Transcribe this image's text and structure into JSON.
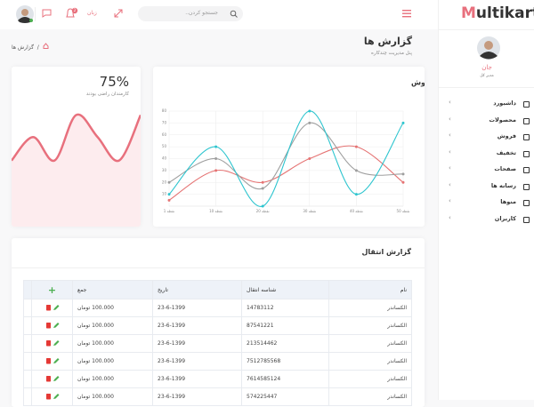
{
  "sidebar": {
    "logo_m": "M",
    "logo_rest": "ultikart",
    "user": {
      "name": "جان",
      "role": "مدیر کل"
    },
    "menu": [
      "داشبورد",
      "محصولات",
      "فروش",
      "تخفیف",
      "صفحات",
      "رسانه ها",
      "منوها",
      "کاربران"
    ]
  },
  "header": {
    "search_placeholder": "جستجو کردن..",
    "language": "زبان",
    "notification_count": "2"
  },
  "page": {
    "title": "گزارش ها",
    "subtitle": "پنل مدیریت چندکاره",
    "breadcrumb": "گزارش ها"
  },
  "stat": {
    "value": "75%",
    "caption": "کارمندان راضی بودند"
  },
  "chart_data": [
    {
      "type": "area",
      "values": [
        48,
        65,
        48,
        81,
        65,
        48,
        81
      ],
      "ylim": [
        0,
        100
      ],
      "color": "#e8707d",
      "fill_color": "#fdecee"
    },
    {
      "type": "line",
      "title": "خلاصه فروش",
      "categories": [
        "نقطه 1",
        "نقطه 10",
        "نقطه 20",
        "نقطه 30",
        "نقطه 40",
        "نقطه 50"
      ],
      "ylim": [
        0,
        80
      ],
      "yticks": [
        10,
        20,
        30,
        40,
        50,
        60,
        70,
        80
      ],
      "grid": true,
      "series": [
        {
          "color": "#e57373",
          "values": [
            5,
            30,
            20,
            40,
            50,
            20
          ]
        },
        {
          "color": "#9e9e9e",
          "values": [
            20,
            40,
            15,
            70,
            30,
            27
          ]
        },
        {
          "color": "#2ec5cf",
          "values": [
            10,
            50,
            0,
            80,
            10,
            70
          ]
        }
      ]
    }
  ],
  "table": {
    "title": "گزارش انتقال",
    "columns": [
      "نام",
      "شناسه انتقال",
      "تاریخ",
      "جمع"
    ],
    "rows": [
      [
        "الکساندر",
        "14783112",
        "23-6-1399",
        "100.000 تومان"
      ],
      [
        "الکساندر",
        "87541221",
        "23-6-1399",
        "100.000 تومان"
      ],
      [
        "الکساندر",
        "213514462",
        "23-6-1399",
        "100.000 تومان"
      ],
      [
        "الکساندر",
        "7512785568",
        "23-6-1399",
        "100.000 تومان"
      ],
      [
        "الکساندر",
        "7614585124",
        "23-6-1399",
        "100.000 تومان"
      ],
      [
        "الکساندر",
        "574225447",
        "23-6-1399",
        "100.000 تومان"
      ]
    ]
  }
}
